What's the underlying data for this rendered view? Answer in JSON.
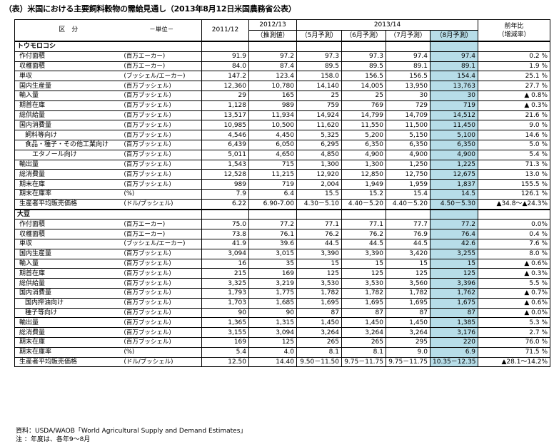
{
  "title": "（表）米国における主要飼料穀物の需給見通し（2013年8月12日米国農務省公表）",
  "header": {
    "category": "区　分",
    "unit": "－単位－",
    "y2011": "2011/12",
    "y2012": "2012/13",
    "y2012_sub": "（推測値）",
    "y2013": "2013/14",
    "may": "（5月予測）",
    "jun": "（6月予測）",
    "jul": "（7月予測）",
    "aug": "（8月予測）",
    "change": "前年比\n（増減率）"
  },
  "sections": [
    {
      "name": "トウモロコシ",
      "rows": [
        {
          "label": "作付面積",
          "indent": 1,
          "unit": "(百万エーカー)",
          "values": [
            "91.9",
            "97.2",
            "97.3",
            "97.3",
            "97.4",
            "97.4",
            "0.2 %"
          ]
        },
        {
          "label": "収穫面積",
          "indent": 1,
          "unit": "(百万エーカー)",
          "values": [
            "84.0",
            "87.4",
            "89.5",
            "89.5",
            "89.1",
            "89.1",
            "1.9 %"
          ]
        },
        {
          "label": "単収",
          "indent": 1,
          "unit": "(ブッシェル/エーカー)",
          "values": [
            "147.2",
            "123.4",
            "158.0",
            "156.5",
            "156.5",
            "154.4",
            "25.1 %"
          ]
        },
        {
          "label": "国内生産量",
          "indent": 1,
          "unit": "(百万ブッシェル)",
          "values": [
            "12,360",
            "10,780",
            "14,140",
            "14,005",
            "13,950",
            "13,763",
            "27.7 %"
          ]
        },
        {
          "label": "輸入量",
          "indent": 1,
          "unit": "(百万ブッシェル)",
          "values": [
            "29",
            "165",
            "25",
            "25",
            "30",
            "30",
            "▲ 0.8%"
          ]
        },
        {
          "label": "期首在庫",
          "indent": 1,
          "unit": "(百万ブッシェル)",
          "values": [
            "1,128",
            "989",
            "759",
            "769",
            "729",
            "719",
            "▲ 0.3%"
          ]
        },
        {
          "label": "総供給量",
          "indent": 1,
          "unit": "(百万ブッシェル)",
          "values": [
            "13,517",
            "11,934",
            "14,924",
            "14,799",
            "14,709",
            "14,512",
            "21.6 %"
          ]
        },
        {
          "label": "国内消費量",
          "indent": 1,
          "unit": "(百万ブッシェル)",
          "values": [
            "10,985",
            "10,500",
            "11,620",
            "11,550",
            "11,500",
            "11,450",
            "9.0 %"
          ]
        },
        {
          "label": "飼料等向け",
          "indent": 2,
          "unit": "(百万ブッシェル)",
          "values": [
            "4,546",
            "4,450",
            "5,325",
            "5,200",
            "5,150",
            "5,100",
            "14.6 %"
          ]
        },
        {
          "label": "食品・種子・その他工業向け",
          "indent": 2,
          "unit": "(百万ブッシェル)",
          "values": [
            "6,439",
            "6,050",
            "6,295",
            "6,350",
            "6,350",
            "6,350",
            "5.0 %"
          ]
        },
        {
          "label": "エタノール向け",
          "indent": 3,
          "unit": "(百万ブッシェル)",
          "values": [
            "5,011",
            "4,650",
            "4,850",
            "4,900",
            "4,900",
            "4,900",
            "5.4 %"
          ]
        },
        {
          "label": "輸出量",
          "indent": 1,
          "unit": "(百万ブッシェル)",
          "values": [
            "1,543",
            "715",
            "1,300",
            "1,300",
            "1,250",
            "1,225",
            "71.3 %"
          ]
        },
        {
          "label": "総消費量",
          "indent": 1,
          "unit": "(百万ブッシェル)",
          "values": [
            "12,528",
            "11,215",
            "12,920",
            "12,850",
            "12,750",
            "12,675",
            "13.0 %"
          ]
        },
        {
          "label": "期末在庫",
          "indent": 1,
          "unit": "(百万ブッシェル)",
          "values": [
            "989",
            "719",
            "2,004",
            "1,949",
            "1,959",
            "1,837",
            "155.5 %"
          ]
        },
        {
          "label": "期末在庫率",
          "indent": 1,
          "unit": "(%)",
          "values": [
            "7.9",
            "6.4",
            "15.5",
            "15.2",
            "15.4",
            "14.5",
            "126.1 %"
          ]
        },
        {
          "label": "生産者平均販売価格",
          "indent": 1,
          "unit": "(ドル/ブッシェル)",
          "values": [
            "6.22",
            "6.90-7.00",
            "4.30－5.10",
            "4.40－5.20",
            "4.40－5.20",
            "4.50－5.30",
            "▲34.8～▲24.3%"
          ]
        }
      ]
    },
    {
      "name": "大豆",
      "rows": [
        {
          "label": "作付面積",
          "indent": 1,
          "unit": "(百万エーカー)",
          "values": [
            "75.0",
            "77.2",
            "77.1",
            "77.1",
            "77.7",
            "77.2",
            "0.0%"
          ]
        },
        {
          "label": "収穫面積",
          "indent": 1,
          "unit": "(百万エーカー)",
          "values": [
            "73.8",
            "76.1",
            "76.2",
            "76.2",
            "76.9",
            "76.4",
            "0.4 %"
          ]
        },
        {
          "label": "単収",
          "indent": 1,
          "unit": "(ブッシェル/エーカー)",
          "values": [
            "41.9",
            "39.6",
            "44.5",
            "44.5",
            "44.5",
            "42.6",
            "7.6 %"
          ]
        },
        {
          "label": "国内生産量",
          "indent": 1,
          "unit": "(百万ブッシェル)",
          "values": [
            "3,094",
            "3,015",
            "3,390",
            "3,390",
            "3,420",
            "3,255",
            "8.0 %"
          ]
        },
        {
          "label": "輸入量",
          "indent": 1,
          "unit": "(百万ブッシェル)",
          "values": [
            "16",
            "35",
            "15",
            "15",
            "15",
            "15",
            "▲ 0.6%"
          ]
        },
        {
          "label": "期首在庫",
          "indent": 1,
          "unit": "(百万ブッシェル)",
          "values": [
            "215",
            "169",
            "125",
            "125",
            "125",
            "125",
            "▲ 0.3%"
          ]
        },
        {
          "label": "総供給量",
          "indent": 1,
          "unit": "(百万ブッシェル)",
          "values": [
            "3,325",
            "3,219",
            "3,530",
            "3,530",
            "3,560",
            "3,396",
            "5.5 %"
          ]
        },
        {
          "label": "国内消費量",
          "indent": 1,
          "unit": "(百万ブッシェル)",
          "values": [
            "1,793",
            "1,775",
            "1,782",
            "1,782",
            "1,782",
            "1,762",
            "▲ 0.7%"
          ]
        },
        {
          "label": "国内搾油向け",
          "indent": 2,
          "unit": "(百万ブッシェル)",
          "values": [
            "1,703",
            "1,685",
            "1,695",
            "1,695",
            "1,695",
            "1,675",
            "▲ 0.6%"
          ]
        },
        {
          "label": "種子等向け",
          "indent": 2,
          "unit": "(百万ブッシェル)",
          "values": [
            "90",
            "90",
            "87",
            "87",
            "87",
            "87",
            "▲ 0.0%"
          ]
        },
        {
          "label": "輸出量",
          "indent": 1,
          "unit": "(百万ブッシェル)",
          "values": [
            "1,365",
            "1,315",
            "1,450",
            "1,450",
            "1,450",
            "1,385",
            "5.3 %"
          ]
        },
        {
          "label": "総消費量",
          "indent": 1,
          "unit": "(百万ブッシェル)",
          "values": [
            "3,155",
            "3,094",
            "3,264",
            "3,264",
            "3,264",
            "3,176",
            "2.7 %"
          ]
        },
        {
          "label": "期末在庫",
          "indent": 1,
          "unit": "(百万ブッシェル)",
          "values": [
            "169",
            "125",
            "265",
            "265",
            "295",
            "220",
            "76.0 %"
          ]
        },
        {
          "label": "期末在庫率",
          "indent": 1,
          "unit": "(%)",
          "values": [
            "5.4",
            "4.0",
            "8.1",
            "8.1",
            "9.0",
            "6.9",
            "71.5 %"
          ]
        },
        {
          "label": "生産者平均販売価格",
          "indent": 1,
          "unit": "(ドル/ブッシェル)",
          "values": [
            "12.50",
            "14.40",
            "9.50－11.50",
            "9.75－11.75",
            "9.75－11.75",
            "10.35－12.35",
            "▲28.1～14.2%"
          ]
        }
      ]
    }
  ],
  "footnotes": {
    "source": "資料：USDA/WAOB「World Agricultural Supply and Demand Estimates」",
    "note": "注 ：年度は、各年9～8月"
  },
  "colors": {
    "highlight": "#b7dde8"
  }
}
